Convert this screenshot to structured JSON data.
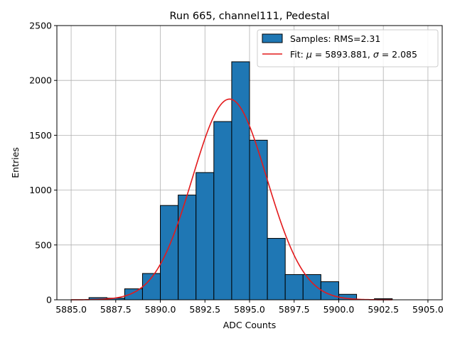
{
  "chart_data": {
    "type": "bar",
    "title": "Run 665, channel111, Pedestal",
    "xlabel": "ADC Counts",
    "ylabel": "Entries",
    "xlim": [
      5884.2,
      5905.8
    ],
    "ylim": [
      0,
      2500
    ],
    "xticks": [
      5885.0,
      5887.5,
      5890.0,
      5892.5,
      5895.0,
      5897.5,
      5900.0,
      5902.5,
      5905.0
    ],
    "xtick_labels": [
      "5885.0",
      "5887.5",
      "5890.0",
      "5892.5",
      "5895.0",
      "5897.5",
      "5900.0",
      "5902.5",
      "5905.0"
    ],
    "yticks": [
      0,
      500,
      1000,
      1500,
      2000,
      2500
    ],
    "ytick_labels": [
      "0",
      "500",
      "1000",
      "1500",
      "2000",
      "2500"
    ],
    "grid": true,
    "legend_position": "top-right",
    "histogram": {
      "name": "Samples: RMS=2.31",
      "color": "#1f77b4",
      "edgecolor": "#000000",
      "bin_edges": [
        5886,
        5887,
        5888,
        5889,
        5890,
        5891,
        5892,
        5893,
        5894,
        5895,
        5896,
        5897,
        5898,
        5899,
        5900,
        5901,
        5902,
        5903
      ],
      "counts": [
        20,
        15,
        100,
        240,
        860,
        955,
        1160,
        1625,
        2170,
        1455,
        560,
        230,
        230,
        165,
        50,
        0,
        10
      ]
    },
    "fit": {
      "name": "Fit: μ = 5893.881, σ = 2.085",
      "label_prefix": "Fit: ",
      "label_mu": "μ",
      "label_mu_value": " = 5893.881, ",
      "label_sigma": "σ",
      "label_sigma_value": " = 2.085",
      "color": "#e31a1c",
      "function": "gaussian",
      "mu": 5893.881,
      "sigma": 2.085,
      "amplitude": 1830,
      "x_range": [
        5885,
        5903
      ]
    }
  }
}
